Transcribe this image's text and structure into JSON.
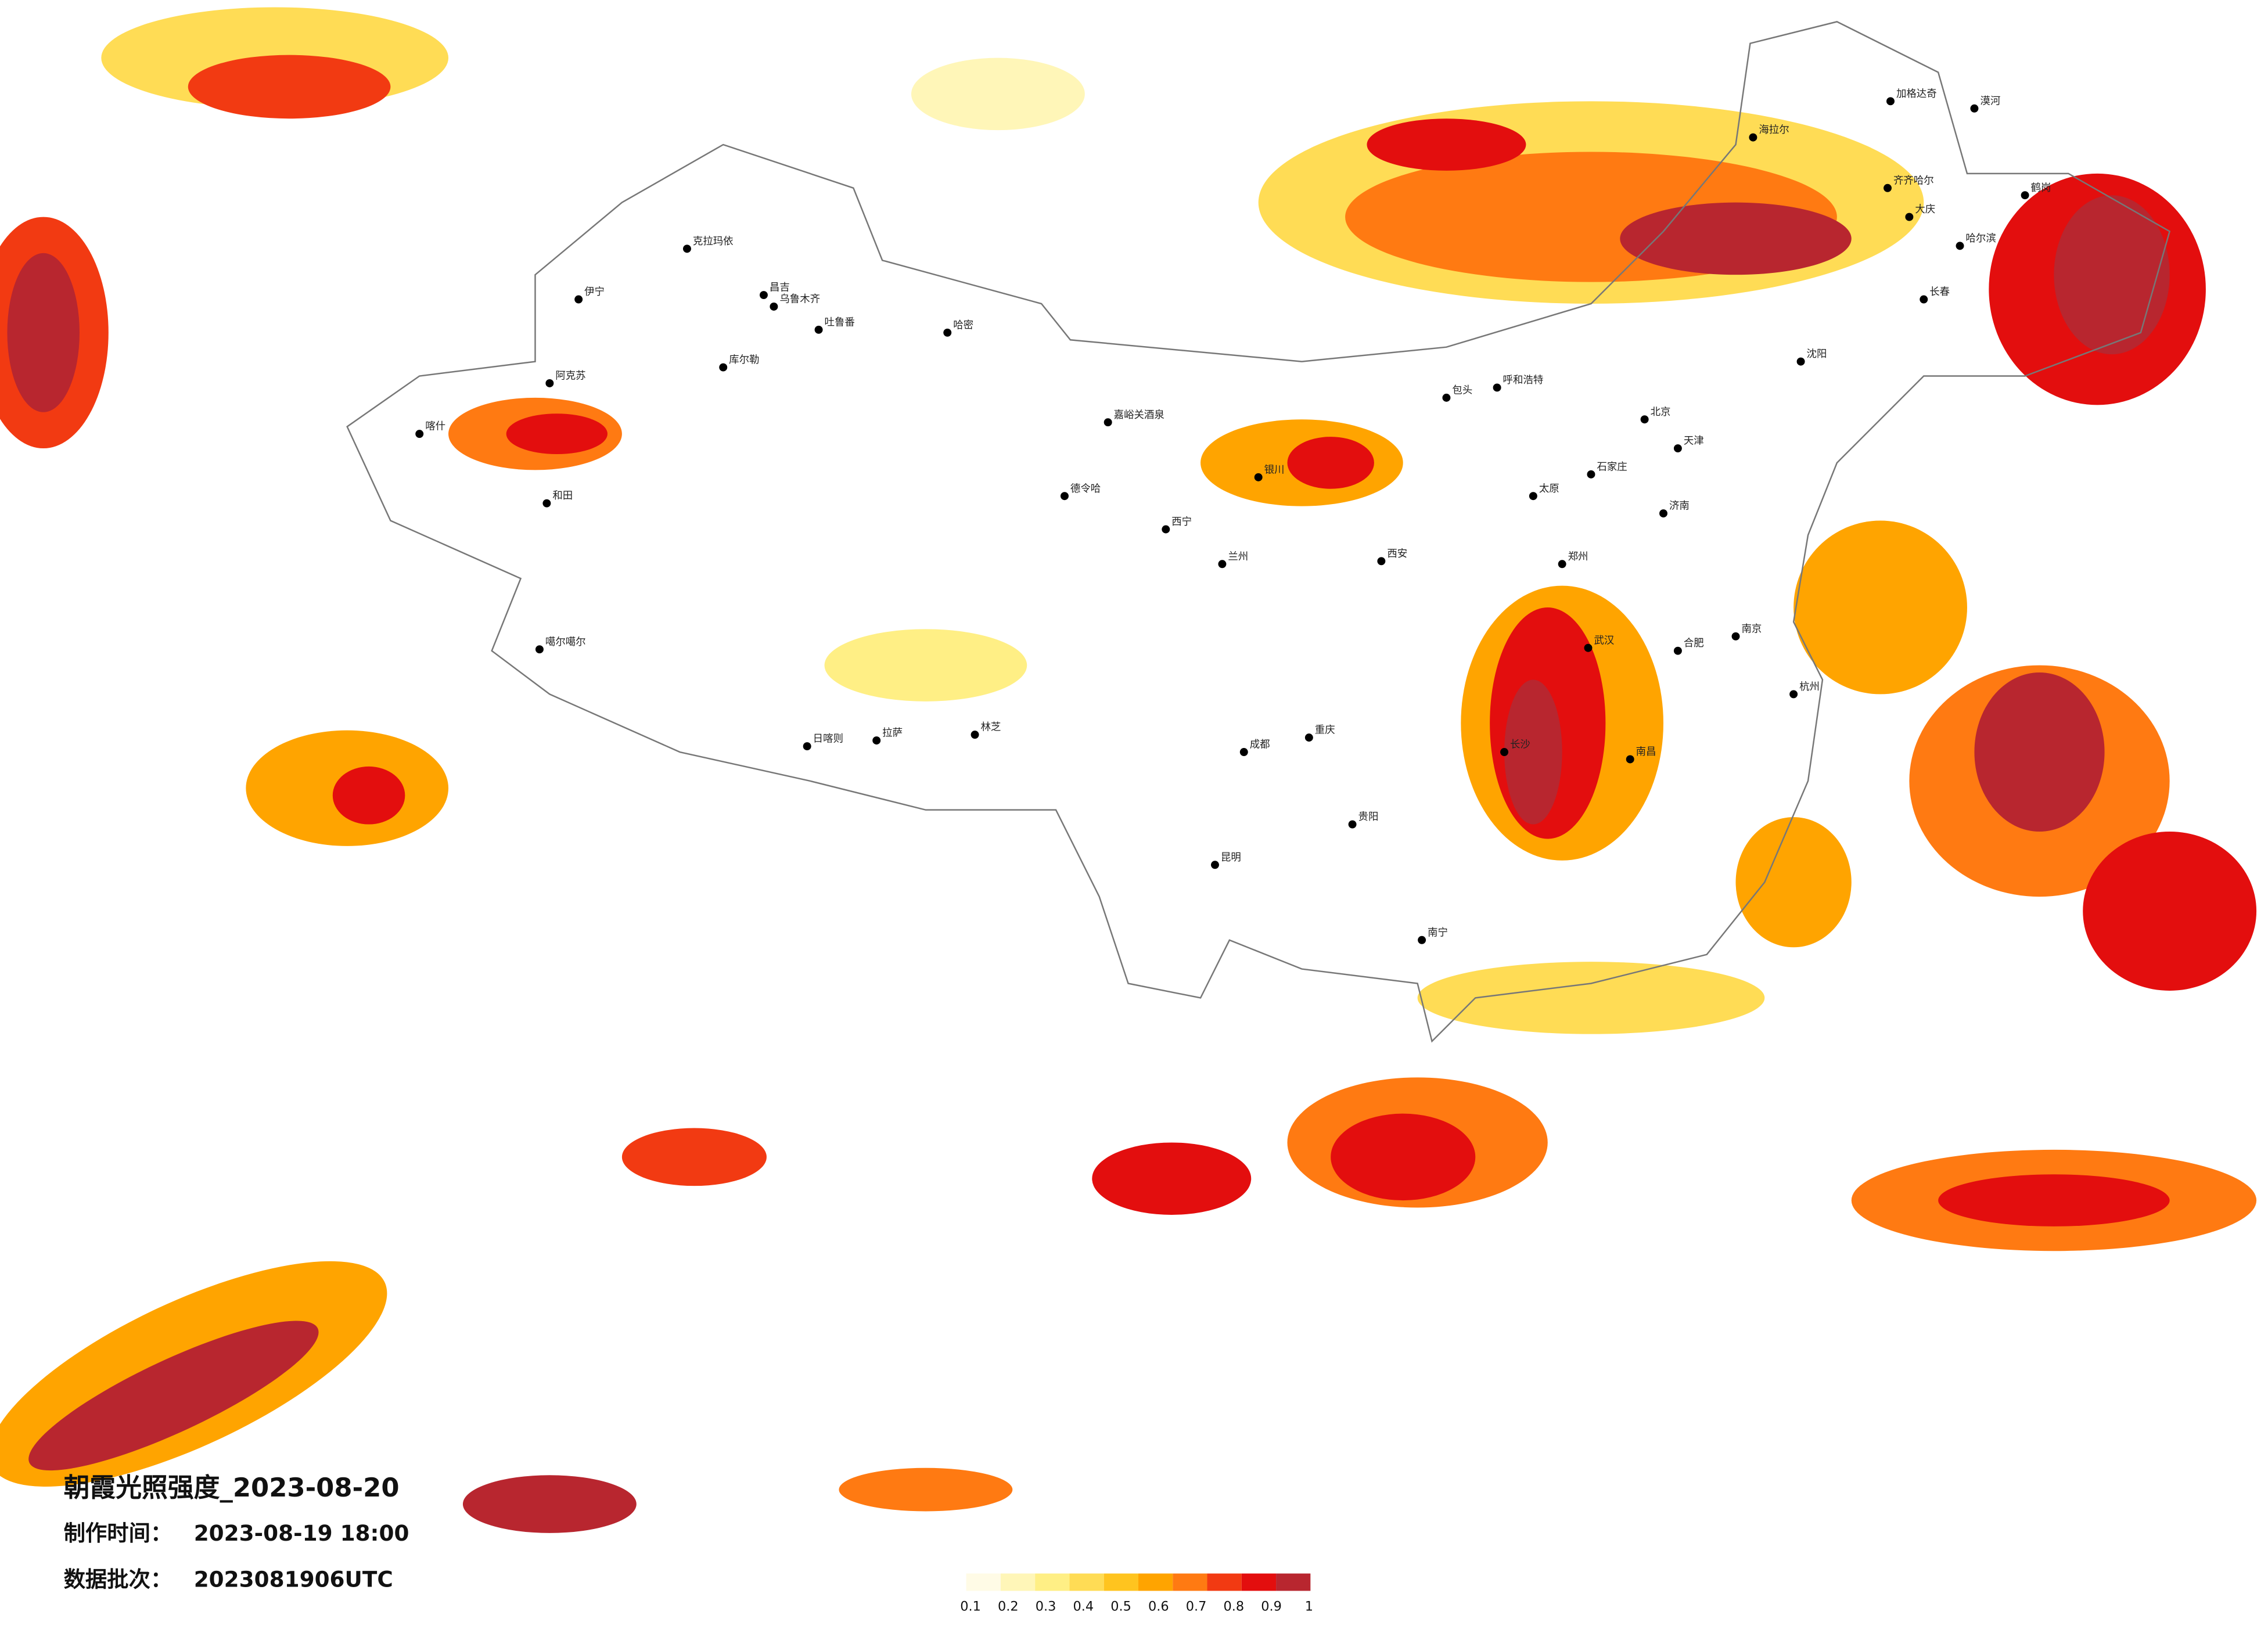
{
  "header": {
    "title": "朝霞光照强度_2023-08-20",
    "made_label": "制作时间：",
    "made_time": "2023-08-19 18:00",
    "batch_label": "数据批次：",
    "batch": "2023081906UTC"
  },
  "legend": {
    "levels": [
      {
        "value": 0.1,
        "color": "#fffbe6"
      },
      {
        "value": 0.2,
        "color": "#fff6b8"
      },
      {
        "value": 0.3,
        "color": "#ffef85"
      },
      {
        "value": 0.4,
        "color": "#ffdc55"
      },
      {
        "value": 0.5,
        "color": "#ffc41f"
      },
      {
        "value": 0.6,
        "color": "#ffa400"
      },
      {
        "value": 0.7,
        "color": "#ff7a12"
      },
      {
        "value": 0.8,
        "color": "#f23a12"
      },
      {
        "value": 0.9,
        "color": "#e30e0e"
      },
      {
        "value": 1,
        "color": "#b8262f"
      }
    ]
  },
  "cities": [
    "克拉玛依",
    "昌吉",
    "乌鲁木齐",
    "吐鲁番",
    "哈密",
    "库尔勒",
    "伊宁",
    "阿克苏",
    "喀什",
    "和田",
    "噶尔噶尔",
    "日喀则",
    "拉萨",
    "林芝",
    "德令哈",
    "嘉峪关酒泉",
    "西宁",
    "兰州",
    "银川",
    "呼和浩特",
    "包头",
    "北京",
    "天津",
    "石家庄",
    "太原",
    "济南",
    "郑州",
    "西安",
    "成都",
    "重庆",
    "武汉",
    "长沙",
    "南昌",
    "合肥",
    "南京",
    "杭州",
    "南宁",
    "昆明",
    "贵阳",
    "沈阳",
    "长春",
    "哈尔滨",
    "齐齐哈尔",
    "海拉尔",
    "加格达奇",
    "大庆",
    "鹤岗",
    "漠河"
  ]
}
